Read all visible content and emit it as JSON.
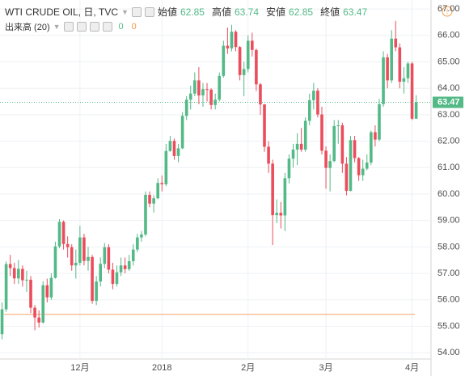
{
  "chart_data": {
    "type": "candlestick",
    "title": "WTI CRUDE OIL, 日, TVC",
    "ohlc_labels": [
      "始値",
      "高値",
      "安値",
      "終値"
    ],
    "volume_label": "出来高 (20)",
    "volume_values": [
      0,
      0
    ],
    "up_color": "#53b987",
    "down_color": "#eb4d5c",
    "reference_line": {
      "value": 55.45,
      "color": "#f4a46c"
    },
    "grid": true,
    "ylim": [
      53.76,
      67.34
    ],
    "yticks": [
      {
        "value": 54,
        "label": "54.00"
      },
      {
        "value": 55,
        "label": "55.00"
      },
      {
        "value": 56,
        "label": "56.00"
      },
      {
        "value": 57,
        "label": "57.00"
      },
      {
        "value": 58,
        "label": "58.00"
      },
      {
        "value": 59,
        "label": "59.00"
      },
      {
        "value": 60,
        "label": "60.00"
      },
      {
        "value": 61,
        "label": "61.00"
      },
      {
        "value": 62,
        "label": "62.00"
      },
      {
        "value": 63,
        "label": "63.00"
      },
      {
        "value": 64,
        "label": "64.00"
      },
      {
        "value": 65,
        "label": "65.00"
      },
      {
        "value": 66,
        "label": "66.00"
      },
      {
        "value": 67,
        "label": "67.00"
      }
    ],
    "categories": [
      null,
      null,
      null,
      null,
      null,
      null,
      null,
      null,
      null,
      null,
      null,
      null,
      null,
      null,
      null,
      null,
      null,
      null,
      null,
      "12月",
      null,
      null,
      null,
      null,
      null,
      null,
      null,
      null,
      null,
      null,
      null,
      null,
      null,
      null,
      null,
      null,
      null,
      null,
      null,
      "2018",
      null,
      null,
      null,
      null,
      null,
      null,
      null,
      null,
      null,
      null,
      null,
      null,
      null,
      null,
      null,
      null,
      null,
      null,
      null,
      null,
      "2月",
      null,
      null,
      null,
      null,
      null,
      null,
      null,
      null,
      null,
      null,
      null,
      null,
      null,
      null,
      null,
      null,
      null,
      null,
      "3月",
      null,
      null,
      null,
      null,
      null,
      null,
      null,
      null,
      null,
      null,
      null,
      null,
      null,
      null,
      null,
      null,
      null,
      null,
      null,
      null,
      "4月",
      null
    ],
    "open": [
      54.7,
      55.64,
      57.35,
      57.2,
      56.81,
      57.17,
      56.74,
      56.76,
      55.7,
      55.33,
      55.14,
      56.55,
      56.09,
      56.83,
      58.02,
      58.95,
      58.11,
      57.99,
      57.3,
      57.4,
      58.36,
      57.47,
      57.62,
      55.96,
      56.69,
      57.36,
      57.99,
      57.14,
      56.6,
      57.04,
      57.3,
      57.16,
      57.46,
      57.9,
      58.36,
      58.47,
      59.97,
      59.64,
      59.84,
      60.42,
      60.37,
      61.63,
      62.01,
      61.44,
      61.73,
      62.96,
      63.57,
      63.8,
      64.3,
      63.73,
      63.97,
      63.95,
      63.37,
      63.57,
      64.47,
      65.61,
      65.51,
      66.14,
      65.56,
      64.5,
      64.73,
      65.8,
      65.45,
      64.15,
      63.39,
      61.79,
      61.15,
      59.2,
      59.29,
      59.19,
      60.6,
      61.34,
      61.68,
      61.9,
      61.68,
      62.77,
      63.55,
      63.91,
      63.01,
      61.64,
      60.99,
      61.25,
      62.57,
      62.6,
      61.15,
      60.12,
      62.04,
      61.36,
      60.71,
      60.96,
      61.19,
      62.34,
      62.06,
      63.4,
      65.17,
      64.3,
      65.88,
      65.55,
      64.25,
      64.38,
      64.94,
      62.85
    ],
    "high": [
      55.9,
      57.45,
      57.7,
      57.4,
      57.5,
      57.3,
      57.1,
      56.9,
      55.8,
      55.6,
      56.7,
      56.8,
      57.0,
      58.2,
      59.05,
      59.0,
      58.4,
      58.1,
      57.9,
      58.8,
      58.5,
      58.0,
      57.7,
      56.9,
      57.6,
      58.15,
      58.1,
      57.4,
      57.3,
      57.6,
      57.6,
      57.7,
      58.1,
      58.5,
      58.6,
      60.1,
      60.1,
      59.95,
      60.6,
      60.7,
      61.9,
      62.2,
      62.1,
      61.9,
      63.1,
      63.7,
      64.1,
      64.6,
      64.8,
      64.2,
      64.2,
      64.0,
      63.8,
      64.6,
      65.8,
      66.3,
      66.4,
      66.2,
      65.6,
      65.0,
      66.0,
      66.1,
      65.5,
      64.2,
      63.4,
      62.0,
      61.3,
      59.8,
      59.7,
      60.8,
      61.5,
      61.9,
      62.3,
      62.5,
      62.9,
      63.8,
      64.2,
      64.0,
      63.3,
      61.8,
      61.5,
      62.8,
      62.8,
      62.7,
      61.4,
      62.2,
      62.2,
      61.4,
      61.3,
      61.5,
      62.4,
      62.6,
      63.6,
      65.4,
      65.3,
      66.2,
      66.55,
      65.7,
      64.8,
      65.0,
      65.0,
      63.74
    ],
    "low": [
      54.5,
      55.55,
      56.9,
      56.6,
      56.6,
      56.5,
      56.3,
      55.5,
      54.85,
      54.95,
      55.1,
      55.9,
      56.0,
      56.8,
      57.95,
      57.9,
      57.6,
      57.1,
      56.8,
      57.3,
      57.3,
      57.1,
      55.85,
      55.8,
      56.5,
      57.2,
      57.0,
      56.4,
      56.5,
      56.9,
      57.0,
      57.1,
      57.3,
      57.8,
      58.2,
      58.4,
      59.5,
      59.3,
      59.8,
      60.1,
      60.3,
      61.6,
      61.3,
      61.2,
      61.7,
      62.8,
      63.2,
      63.7,
      63.4,
      63.3,
      63.5,
      63.2,
      63.2,
      63.5,
      64.4,
      65.3,
      65.4,
      65.4,
      64.3,
      63.7,
      64.6,
      65.2,
      63.9,
      63.0,
      61.6,
      60.8,
      58.07,
      58.9,
      58.7,
      58.6,
      60.4,
      61.0,
      61.1,
      61.6,
      61.6,
      62.6,
      63.2,
      62.9,
      61.5,
      60.2,
      60.1,
      61.2,
      61.9,
      60.8,
      59.95,
      60.1,
      61.2,
      60.5,
      60.5,
      60.9,
      61.1,
      61.8,
      62.0,
      63.3,
      64.0,
      64.2,
      65.4,
      64.0,
      63.8,
      64.2,
      62.8,
      62.85
    ],
    "close": [
      55.64,
      57.35,
      57.2,
      56.81,
      57.17,
      56.74,
      56.76,
      55.7,
      55.33,
      55.14,
      56.55,
      56.09,
      56.83,
      58.02,
      58.95,
      58.11,
      57.99,
      57.3,
      57.4,
      58.36,
      57.47,
      57.62,
      55.96,
      56.69,
      57.36,
      57.99,
      57.14,
      56.6,
      57.04,
      57.3,
      57.16,
      57.46,
      57.9,
      58.36,
      58.47,
      59.97,
      59.64,
      59.84,
      60.42,
      60.37,
      61.63,
      62.01,
      61.44,
      61.73,
      62.96,
      63.57,
      63.8,
      64.3,
      63.73,
      63.97,
      63.95,
      63.37,
      63.57,
      64.47,
      65.61,
      65.51,
      66.14,
      65.56,
      64.5,
      64.73,
      65.8,
      65.45,
      64.15,
      63.39,
      61.79,
      61.15,
      59.2,
      59.29,
      59.19,
      60.6,
      61.34,
      61.68,
      61.9,
      61.68,
      62.77,
      63.55,
      63.91,
      63.01,
      61.64,
      60.99,
      61.25,
      62.57,
      62.6,
      61.15,
      60.12,
      62.04,
      61.36,
      60.71,
      60.96,
      61.19,
      62.34,
      62.06,
      63.4,
      65.17,
      64.3,
      65.88,
      65.55,
      64.25,
      64.38,
      64.94,
      62.85,
      63.47
    ]
  }
}
